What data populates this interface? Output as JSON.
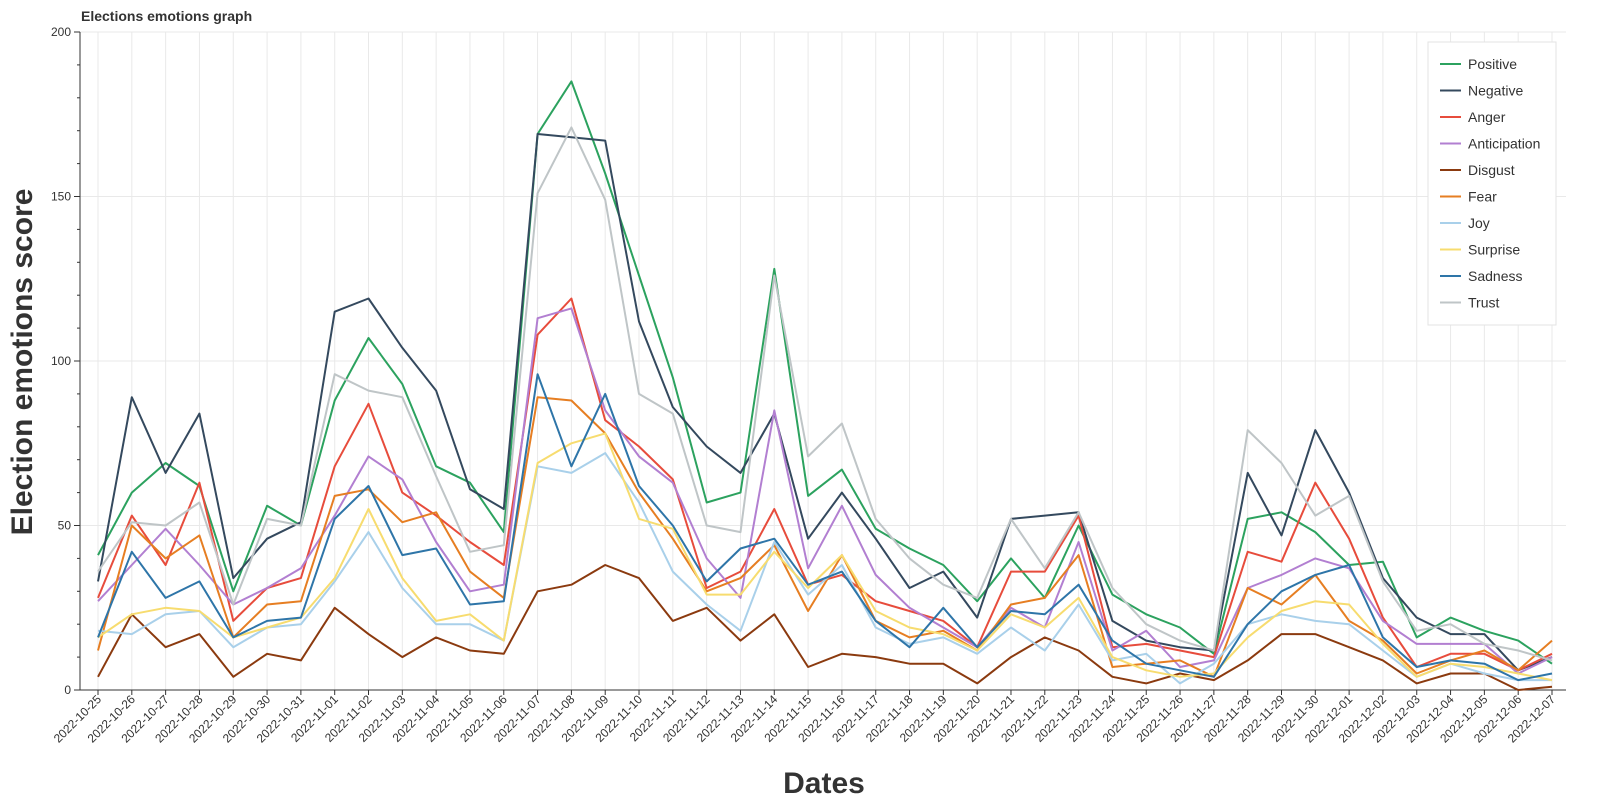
{
  "chart_data": {
    "type": "line",
    "title": "Elections emotions graph",
    "xlabel": "Dates",
    "ylabel": "Election emotions score",
    "ylim": [
      0,
      200
    ],
    "y_ticks": [
      "0",
      "50",
      "100",
      "150",
      "200"
    ],
    "grid": true,
    "legend_position": "top-right",
    "x": [
      "2022-10-25",
      "2022-10-26",
      "2022-10-27",
      "2022-10-28",
      "2022-10-29",
      "2022-10-30",
      "2022-10-31",
      "2022-11-01",
      "2022-11-02",
      "2022-11-03",
      "2022-11-04",
      "2022-11-05",
      "2022-11-06",
      "2022-11-07",
      "2022-11-08",
      "2022-11-09",
      "2022-11-10",
      "2022-11-11",
      "2022-11-12",
      "2022-11-13",
      "2022-11-14",
      "2022-11-15",
      "2022-11-16",
      "2022-11-17",
      "2022-11-18",
      "2022-11-19",
      "2022-11-20",
      "2022-11-21",
      "2022-11-22",
      "2022-11-23",
      "2022-11-24",
      "2022-11-25",
      "2022-11-26",
      "2022-11-27",
      "2022-11-28",
      "2022-11-29",
      "2022-11-30",
      "2022-12-01",
      "2022-12-02",
      "2022-12-03",
      "2022-12-04",
      "2022-12-05",
      "2022-12-06",
      "2022-12-07"
    ],
    "series": [
      {
        "name": "Positive",
        "color": "#2ca25f",
        "values": [
          41,
          60,
          69,
          62,
          30,
          56,
          50,
          88,
          107,
          93,
          68,
          63,
          48,
          169,
          185,
          157,
          126,
          95,
          57,
          60,
          128,
          59,
          67,
          49,
          43,
          38,
          27,
          40,
          28,
          50,
          29,
          23,
          19,
          11,
          52,
          54,
          48,
          38,
          39,
          16,
          22,
          18,
          15,
          8
        ]
      },
      {
        "name": "Negative",
        "color": "#34495e",
        "values": [
          33,
          89,
          66,
          84,
          34,
          46,
          51,
          115,
          119,
          104,
          91,
          61,
          55,
          169,
          168,
          167,
          112,
          86,
          74,
          66,
          84,
          46,
          60,
          46,
          31,
          36,
          22,
          52,
          53,
          54,
          21,
          15,
          13,
          12,
          66,
          47,
          79,
          60,
          34,
          22,
          17,
          17,
          6,
          10
        ]
      },
      {
        "name": "Anger",
        "color": "#e74c3c",
        "values": [
          28,
          53,
          38,
          63,
          21,
          31,
          34,
          68,
          87,
          60,
          53,
          45,
          38,
          108,
          119,
          82,
          74,
          64,
          31,
          36,
          55,
          32,
          35,
          27,
          24,
          21,
          13,
          36,
          36,
          53,
          13,
          14,
          12,
          10,
          42,
          39,
          63,
          46,
          22,
          7,
          11,
          11,
          6,
          11
        ]
      },
      {
        "name": "Anticipation",
        "color": "#b27fd1",
        "values": [
          27,
          38,
          49,
          38,
          26,
          31,
          37,
          53,
          71,
          64,
          45,
          30,
          32,
          113,
          116,
          85,
          71,
          63,
          40,
          28,
          85,
          37,
          56,
          35,
          25,
          19,
          13,
          25,
          19,
          45,
          12,
          18,
          7,
          9,
          31,
          35,
          40,
          37,
          21,
          14,
          14,
          14,
          5,
          10
        ]
      },
      {
        "name": "Disgust",
        "color": "#8b3a0f",
        "values": [
          4,
          23,
          13,
          17,
          4,
          11,
          9,
          25,
          17,
          10,
          16,
          12,
          11,
          30,
          32,
          38,
          34,
          21,
          25,
          15,
          23,
          7,
          11,
          10,
          8,
          8,
          2,
          10,
          16,
          12,
          4,
          2,
          5,
          3,
          9,
          17,
          17,
          13,
          9,
          2,
          5,
          5,
          0,
          1
        ]
      },
      {
        "name": "Fear",
        "color": "#e67e22",
        "values": [
          12,
          50,
          40,
          47,
          16,
          26,
          27,
          59,
          61,
          51,
          54,
          36,
          28,
          89,
          88,
          78,
          60,
          46,
          30,
          34,
          44,
          24,
          41,
          21,
          16,
          18,
          12,
          26,
          28,
          41,
          7,
          8,
          9,
          4,
          31,
          26,
          35,
          21,
          15,
          5,
          9,
          12,
          6,
          15
        ]
      },
      {
        "name": "Joy",
        "color": "#a9d0ea",
        "values": [
          18,
          17,
          23,
          24,
          13,
          19,
          20,
          33,
          48,
          31,
          20,
          20,
          15,
          68,
          66,
          72,
          57,
          36,
          26,
          18,
          45,
          29,
          38,
          19,
          14,
          16,
          11,
          19,
          12,
          26,
          9,
          11,
          2,
          8,
          20,
          23,
          21,
          20,
          12,
          4,
          8,
          5,
          3,
          3
        ]
      },
      {
        "name": "Surprise",
        "color": "#f7dc6f",
        "values": [
          16,
          23,
          25,
          24,
          16,
          19,
          22,
          34,
          55,
          34,
          21,
          23,
          15,
          69,
          75,
          78,
          52,
          49,
          29,
          29,
          42,
          31,
          41,
          24,
          19,
          17,
          12,
          23,
          19,
          28,
          10,
          6,
          4,
          5,
          16,
          24,
          27,
          26,
          14,
          4,
          8,
          7,
          5,
          3
        ]
      },
      {
        "name": "Sadness",
        "color": "#2e75a8",
        "values": [
          16,
          42,
          28,
          33,
          16,
          21,
          22,
          52,
          62,
          41,
          43,
          26,
          27,
          96,
          68,
          90,
          62,
          50,
          33,
          43,
          46,
          32,
          36,
          21,
          13,
          25,
          13,
          24,
          23,
          32,
          15,
          8,
          6,
          4,
          20,
          30,
          35,
          38,
          16,
          7,
          9,
          8,
          3,
          5
        ]
      },
      {
        "name": "Trust",
        "color": "#bfc5c7",
        "values": [
          36,
          51,
          50,
          57,
          26,
          52,
          50,
          96,
          91,
          89,
          65,
          42,
          44,
          151,
          171,
          149,
          90,
          84,
          50,
          48,
          126,
          71,
          81,
          52,
          40,
          32,
          28,
          52,
          37,
          54,
          31,
          20,
          15,
          12,
          79,
          69,
          53,
          59,
          33,
          18,
          20,
          14,
          12,
          9
        ]
      }
    ]
  }
}
